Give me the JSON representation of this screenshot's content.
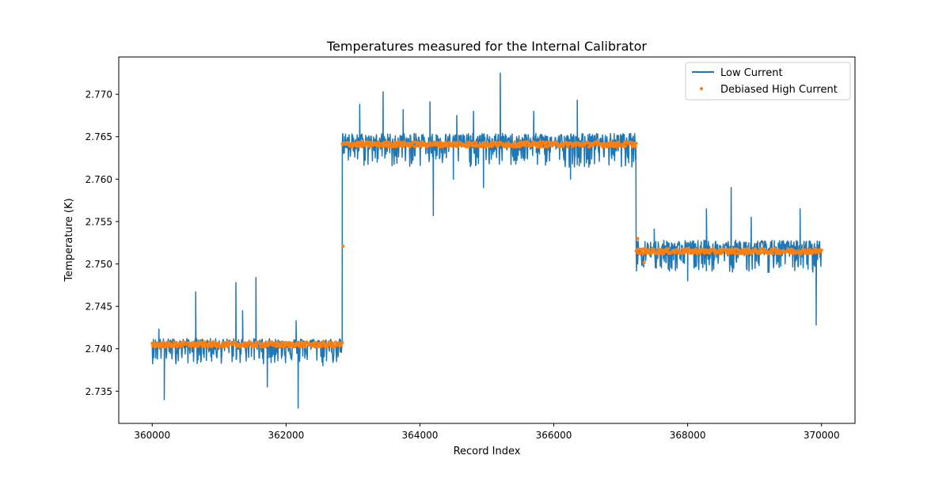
{
  "chart_data": {
    "type": "line",
    "title": "Temperatures measured for the Internal Calibrator",
    "xlabel": "Record Index",
    "ylabel": "Temperature (K)",
    "xlim": [
      359500,
      370500
    ],
    "ylim": [
      2.7312,
      2.7744
    ],
    "xticks": [
      360000,
      362000,
      364000,
      366000,
      368000,
      370000
    ],
    "xtick_labels": [
      "360000",
      "362000",
      "364000",
      "366000",
      "368000",
      "370000"
    ],
    "yticks": [
      2.735,
      2.74,
      2.745,
      2.75,
      2.755,
      2.76,
      2.765,
      2.77
    ],
    "ytick_labels": [
      "2.735",
      "2.740",
      "2.745",
      "2.750",
      "2.755",
      "2.760",
      "2.765",
      "2.770"
    ],
    "grid": false,
    "legend_position": "upper-right",
    "series": [
      {
        "name": "Low Current",
        "style": "line",
        "color": "#1f77b4",
        "segments": [
          {
            "x": [
              360000,
              362840
            ],
            "mean": 2.7404,
            "noise_up": 0.0008,
            "noise_down": 0.0022
          },
          {
            "x": [
              362840,
              367230
            ],
            "mean": 2.7642,
            "noise_up": 0.0012,
            "noise_down": 0.0028
          },
          {
            "x": [
              367230,
              370000
            ],
            "mean": 2.7516,
            "noise_up": 0.0012,
            "noise_down": 0.0026
          }
        ],
        "spikes": [
          {
            "x": 360100,
            "y": 2.7423
          },
          {
            "x": 360180,
            "y": 2.734
          },
          {
            "x": 360650,
            "y": 2.7467
          },
          {
            "x": 361250,
            "y": 2.7478
          },
          {
            "x": 361350,
            "y": 2.7445
          },
          {
            "x": 361550,
            "y": 2.7484
          },
          {
            "x": 361720,
            "y": 2.7355
          },
          {
            "x": 362150,
            "y": 2.7433
          },
          {
            "x": 362180,
            "y": 2.733
          },
          {
            "x": 362550,
            "y": 2.738
          },
          {
            "x": 363100,
            "y": 2.7688
          },
          {
            "x": 363450,
            "y": 2.7703
          },
          {
            "x": 363750,
            "y": 2.7682
          },
          {
            "x": 364150,
            "y": 2.7691
          },
          {
            "x": 364200,
            "y": 2.7557
          },
          {
            "x": 364500,
            "y": 2.76
          },
          {
            "x": 364550,
            "y": 2.7675
          },
          {
            "x": 364800,
            "y": 2.768
          },
          {
            "x": 364950,
            "y": 2.759
          },
          {
            "x": 365200,
            "y": 2.7725
          },
          {
            "x": 365700,
            "y": 2.768
          },
          {
            "x": 366250,
            "y": 2.76
          },
          {
            "x": 366350,
            "y": 2.7693
          },
          {
            "x": 367500,
            "y": 2.7541
          },
          {
            "x": 367650,
            "y": 2.7503
          },
          {
            "x": 368000,
            "y": 2.748
          },
          {
            "x": 368280,
            "y": 2.7565
          },
          {
            "x": 368650,
            "y": 2.759
          },
          {
            "x": 368950,
            "y": 2.7555
          },
          {
            "x": 369200,
            "y": 2.749
          },
          {
            "x": 369680,
            "y": 2.7565
          },
          {
            "x": 369920,
            "y": 2.7428
          }
        ]
      },
      {
        "name": "Debiased High Current",
        "style": "scatter",
        "color": "#ff7f0e",
        "segments": [
          {
            "x": [
              360000,
              362840
            ],
            "mean": 2.7405,
            "noise": 0.0003
          },
          {
            "x": [
              362840,
              367230
            ],
            "mean": 2.7641,
            "noise": 0.0003
          },
          {
            "x": [
              367230,
              370000
            ],
            "mean": 2.7515,
            "noise": 0.0003
          }
        ],
        "outliers": [
          {
            "x": 362850,
            "y": 2.7521
          },
          {
            "x": 367250,
            "y": 2.753
          },
          {
            "x": 367350,
            "y": 2.7502
          }
        ]
      }
    ]
  }
}
